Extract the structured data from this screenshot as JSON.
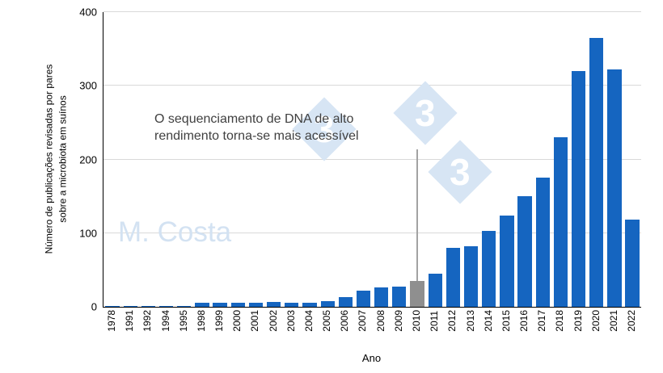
{
  "chart_data": {
    "type": "bar",
    "xlabel": "Ano",
    "ylabel_line1": "Número de publicações revisadas por pares",
    "ylabel_line2": "sobre a microbiota em suínos",
    "ylim": [
      0,
      400
    ],
    "yticks": [
      0,
      100,
      200,
      300,
      400
    ],
    "categories": [
      "1978",
      "1991",
      "1992",
      "1994",
      "1995",
      "1998",
      "1999",
      "2000",
      "2001",
      "2002",
      "2003",
      "2004",
      "2005",
      "2006",
      "2007",
      "2008",
      "2009",
      "2010",
      "2011",
      "2012",
      "2013",
      "2014",
      "2015",
      "2016",
      "2017",
      "2018",
      "2019",
      "2020",
      "2021",
      "2022"
    ],
    "values": [
      1,
      1,
      1,
      1,
      1,
      5,
      5,
      5,
      5,
      7,
      5,
      5,
      8,
      13,
      22,
      26,
      27,
      35,
      45,
      80,
      82,
      103,
      124,
      150,
      175,
      230,
      320,
      365,
      322,
      118
    ],
    "bar_color": "#1565c0",
    "highlight_category": "2010",
    "highlight_color": "#8f8f8f",
    "gridline_color": "#d9d9d9",
    "legend": "none",
    "grid": "horizontal",
    "annotation": {
      "line1": "O sequenciamento de DNA de alto",
      "line2": "rendimento torna-se mais acessível",
      "target_category": "2010",
      "line_color": "#a3a3a3"
    },
    "watermark": {
      "text": "M. Costa",
      "logo_glyph": "3",
      "color": "#d7e5f4"
    }
  }
}
